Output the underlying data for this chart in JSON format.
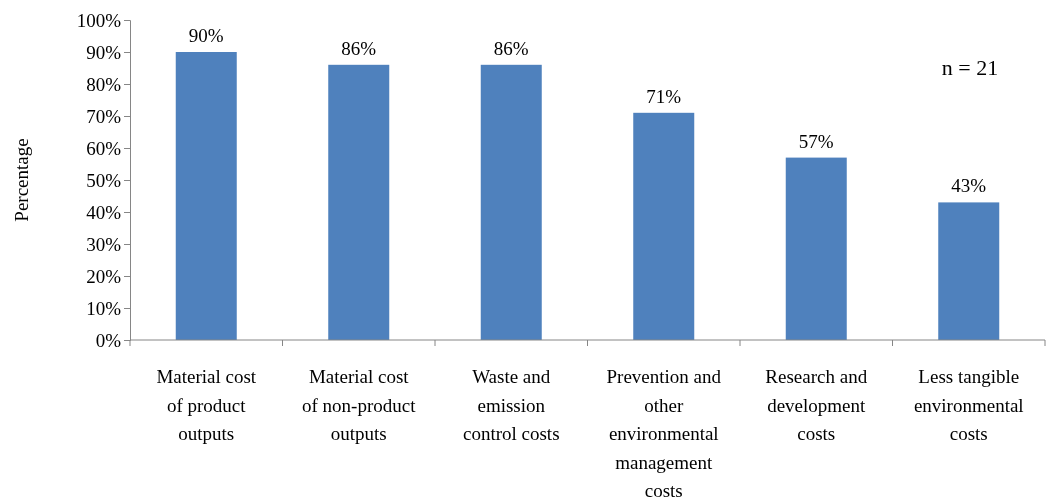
{
  "chart_data": {
    "type": "bar",
    "ylabel": "Percentage",
    "categories": [
      "Material cost of product outputs",
      "Material cost of non-product outputs",
      "Waste and emission control costs",
      "Prevention and other environmental management costs",
      "Research and development costs",
      "Less tangible environmental costs"
    ],
    "values": [
      90,
      86,
      86,
      71,
      57,
      43
    ],
    "value_labels": [
      "90%",
      "86%",
      "86%",
      "71%",
      "57%",
      "43%"
    ],
    "color": "#4f81bd",
    "ylim": [
      0,
      100
    ],
    "yticks": [
      {
        "value": 0,
        "label": "0%"
      },
      {
        "value": 10,
        "label": "10%"
      },
      {
        "value": 20,
        "label": "20%"
      },
      {
        "value": 30,
        "label": "30%"
      },
      {
        "value": 40,
        "label": "40%"
      },
      {
        "value": 50,
        "label": "50%"
      },
      {
        "value": 60,
        "label": "60%"
      },
      {
        "value": 70,
        "label": "70%"
      },
      {
        "value": 80,
        "label": "80%"
      },
      {
        "value": 90,
        "label": "90%"
      },
      {
        "value": 100,
        "label": "100%"
      }
    ],
    "grid": false,
    "annotations": [
      "n = 21"
    ]
  }
}
